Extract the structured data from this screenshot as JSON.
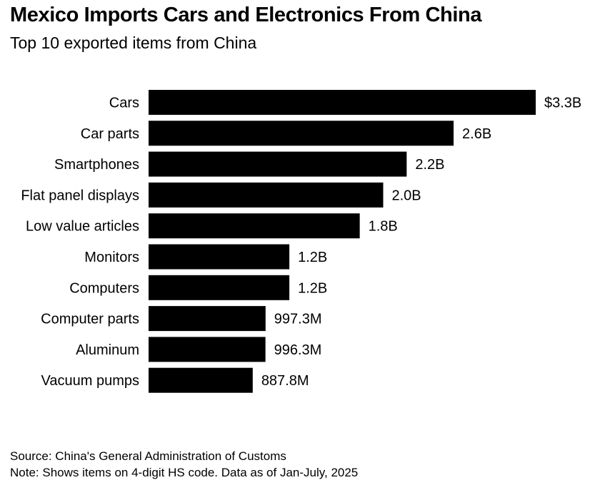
{
  "title": "Mexico Imports Cars and Electronics From China",
  "subtitle": "Top 10 exported items from China",
  "footer": {
    "source": "Source: China's General Administration of Customs",
    "note": "Note: Shows items on 4-digit HS code. Data as of Jan-July, 2025"
  },
  "colors": {
    "bar": "#000000",
    "text": "#000000",
    "background": "#ffffff"
  },
  "chart_data": {
    "type": "bar",
    "orientation": "horizontal",
    "title": "Mexico Imports Cars and Electronics From China",
    "subtitle": "Top 10 exported items from China",
    "xlabel": "",
    "ylabel": "",
    "unit": "USD",
    "grid": false,
    "categories": [
      "Cars",
      "Car parts",
      "Smartphones",
      "Flat panel displays",
      "Low value articles",
      "Monitors",
      "Computers",
      "Computer parts",
      "Aluminum",
      "Vacuum pumps"
    ],
    "values": [
      3.3,
      2.6,
      2.2,
      2.0,
      1.8,
      1.2,
      1.2,
      0.9973,
      0.9963,
      0.8878
    ],
    "labels": [
      "$3.3B",
      "2.6B",
      "2.2B",
      "2.0B",
      "1.8B",
      "1.2B",
      "1.2B",
      "997.3M",
      "996.3M",
      "887.8M"
    ],
    "xlim": [
      0,
      3.3
    ]
  }
}
